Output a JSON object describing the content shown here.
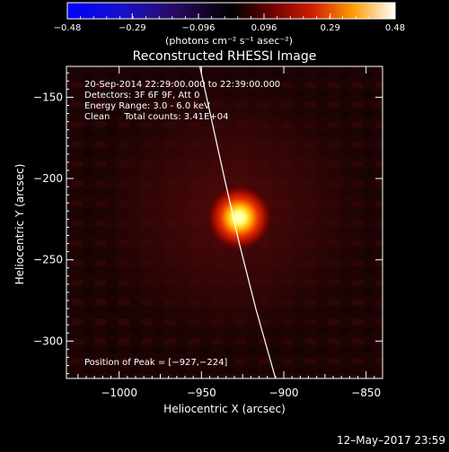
{
  "chart_data": {
    "type": "heatmap",
    "title": "Reconstructed RHESSI Image",
    "xlabel": "Heliocentric X (arcsec)",
    "ylabel": "Heliocentric Y (arcsec)",
    "xlim": [
      -1032,
      -840
    ],
    "ylim": [
      -323,
      -131
    ],
    "xticks": [
      -1000,
      -950,
      -900,
      -850
    ],
    "yticks": [
      -150,
      -200,
      -250,
      -300
    ],
    "xtick_labels": [
      "−1000",
      "−950",
      "−900",
      "−850"
    ],
    "ytick_labels": [
      "−150",
      "−200",
      "−250",
      "−300"
    ],
    "colorbar": {
      "min": -0.48,
      "max": 0.48,
      "ticks": [
        -0.48,
        -0.29,
        -0.096,
        0.096,
        0.29,
        0.48
      ],
      "tick_labels": [
        "−0.48",
        "−0.29",
        "−0.096",
        "0.096",
        "0.29",
        "0.48"
      ],
      "label": "(photons cm⁻² s⁻¹ asec⁻²)"
    },
    "peak": {
      "x": -927,
      "y": -224
    },
    "limb_curve": [
      [
        -951,
        -131
      ],
      [
        -936,
        -200
      ],
      [
        -927,
        -240
      ],
      [
        -917,
        -280
      ],
      [
        -905,
        -323
      ]
    ],
    "annotations": [
      "20-Sep-2014 22:29:00.000 to 22:39:00.000",
      "Detectors: 3F 6F 9F, Att 0",
      "Energy Range: 3.0 - 6.0 keV",
      "Clean     Total counts: 3.41E+04",
      "Position of Peak = [−927,−224]"
    ]
  },
  "footer_date": "12–May–2017 23:59"
}
